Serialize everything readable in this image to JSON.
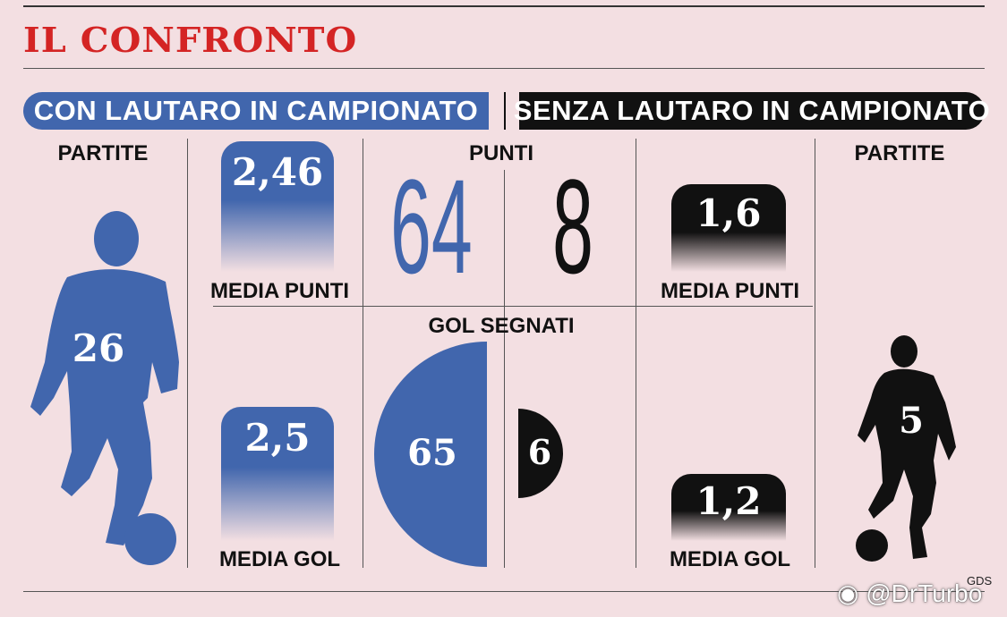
{
  "title": "IL CONFRONTO",
  "left_banner": "CON LAUTARO IN CAMPIONATO",
  "right_banner": "SENZA LAUTARO IN CAMPIONATO",
  "labels": {
    "partite_left": "PARTITE",
    "partite_right": "PARTITE",
    "punti": "PUNTI",
    "gol_segnati": "GOL SEGNATI",
    "media_punti_left": "MEDIA PUNTI",
    "media_punti_right": "MEDIA PUNTI",
    "media_gol_left": "MEDIA GOL",
    "media_gol_right": "MEDIA GOL"
  },
  "credit": "GDS",
  "watermark": "@DrTurbo",
  "colors": {
    "with": "#4166ad",
    "without": "#111111",
    "title": "#d42424",
    "background": "#f3dfe2"
  },
  "chart_data": {
    "type": "bar",
    "categories": [
      "PARTITE",
      "PUNTI",
      "MEDIA PUNTI",
      "GOL SEGNATI",
      "MEDIA GOL"
    ],
    "series": [
      {
        "name": "CON LAUTARO IN CAMPIONATO",
        "values": [
          26,
          64,
          2.46,
          65,
          2.5
        ],
        "display": [
          "26",
          "64",
          "2,46",
          "65",
          "2,5"
        ]
      },
      {
        "name": "SENZA LAUTARO IN CAMPIONATO",
        "values": [
          5,
          8,
          1.6,
          6,
          1.2
        ],
        "display": [
          "5",
          "8",
          "1,6",
          "6",
          "1,2"
        ]
      }
    ]
  }
}
